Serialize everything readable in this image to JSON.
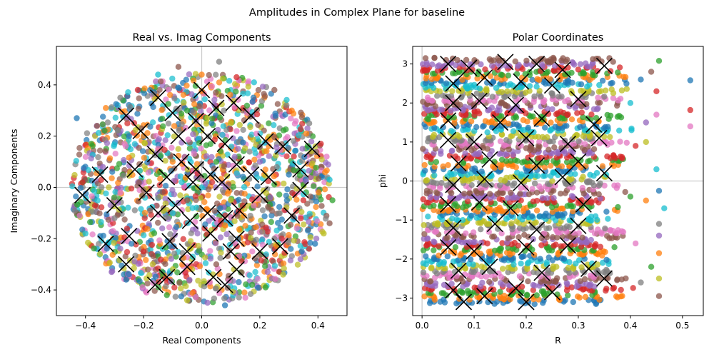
{
  "figure": {
    "title": "Amplitudes in Complex Plane for baseline"
  },
  "palette": [
    "#1f77b4",
    "#ff7f0e",
    "#2ca02c",
    "#d62728",
    "#9467bd",
    "#8c564b",
    "#e377c2",
    "#7f7f7f",
    "#bcbd22",
    "#17becf"
  ],
  "marker_color": "#000000",
  "chart_data": [
    {
      "type": "scatter",
      "title": "Real vs. Imag Components",
      "xlabel": "Real Components",
      "ylabel": "Imaginary Components",
      "xlim": [
        -0.5,
        0.5
      ],
      "ylim": [
        -0.5,
        0.55
      ],
      "xticks": [
        -0.4,
        -0.2,
        0.0,
        0.2,
        0.4
      ],
      "yticks": [
        -0.4,
        -0.2,
        0.0,
        0.2,
        0.4
      ],
      "xtick_labels": [
        "−0.4",
        "−0.2",
        "0.0",
        "0.2",
        "0.4"
      ],
      "ytick_labels": [
        "−0.4",
        "−0.2",
        "0.0",
        "0.2",
        "0.4"
      ],
      "reference_lines": {
        "x": 0,
        "y": 0
      },
      "grid": false,
      "legend": "none",
      "points": [
        [
          -0.43,
          0.27
        ],
        [
          -0.41,
          0.02
        ],
        [
          -0.42,
          -0.11
        ],
        [
          -0.4,
          -0.18
        ],
        [
          -0.38,
          0.17
        ],
        [
          -0.36,
          0.24
        ],
        [
          -0.35,
          -0.26
        ],
        [
          -0.33,
          0.31
        ],
        [
          -0.31,
          -0.33
        ],
        [
          -0.28,
          0.35
        ],
        [
          -0.26,
          -0.36
        ],
        [
          -0.22,
          0.38
        ],
        [
          -0.19,
          -0.41
        ],
        [
          -0.15,
          0.44
        ],
        [
          -0.12,
          -0.42
        ],
        [
          -0.08,
          0.47
        ],
        [
          -0.05,
          -0.44
        ],
        [
          0.0,
          0.44
        ],
        [
          0.02,
          -0.45
        ],
        [
          0.06,
          0.49
        ],
        [
          0.08,
          -0.46
        ],
        [
          0.12,
          0.43
        ],
        [
          0.15,
          -0.43
        ],
        [
          0.18,
          0.41
        ],
        [
          0.22,
          -0.39
        ],
        [
          0.25,
          0.38
        ],
        [
          0.28,
          -0.34
        ],
        [
          0.31,
          0.3
        ],
        [
          0.34,
          -0.28
        ],
        [
          0.37,
          0.25
        ],
        [
          0.39,
          -0.22
        ],
        [
          0.41,
          0.17
        ],
        [
          0.43,
          0.12
        ],
        [
          0.44,
          0.03
        ],
        [
          0.45,
          -0.05
        ],
        [
          0.44,
          -0.14
        ],
        [
          0.42,
          -0.18
        ],
        [
          0.36,
          0.21
        ],
        [
          -0.34,
          0.08
        ],
        [
          -0.3,
          -0.12
        ],
        [
          -0.25,
          0.2
        ],
        [
          -0.2,
          -0.25
        ],
        [
          -0.15,
          0.15
        ],
        [
          -0.1,
          -0.1
        ],
        [
          -0.05,
          0.3
        ],
        [
          0.05,
          -0.3
        ],
        [
          0.1,
          0.25
        ],
        [
          0.15,
          -0.15
        ],
        [
          0.2,
          0.1
        ],
        [
          0.25,
          -0.2
        ],
        [
          0.3,
          0.05
        ],
        [
          0.35,
          -0.05
        ],
        [
          -0.28,
          -0.02
        ],
        [
          0.0,
          0.0
        ],
        [
          0.05,
          0.1
        ],
        [
          -0.05,
          -0.05
        ],
        [
          0.1,
          -0.05
        ],
        [
          -0.1,
          0.1
        ]
      ],
      "x_markers": [
        [
          -0.41,
          -0.03
        ],
        [
          -0.33,
          -0.22
        ],
        [
          -0.26,
          0.28
        ],
        [
          -0.21,
          0.22
        ],
        [
          -0.15,
          0.35
        ],
        [
          -0.1,
          0.29
        ],
        [
          -0.02,
          0.26
        ],
        [
          0.05,
          0.31
        ],
        [
          0.11,
          0.33
        ],
        [
          0.17,
          0.28
        ],
        [
          0.22,
          0.18
        ],
        [
          0.28,
          0.16
        ],
        [
          0.34,
          0.07
        ],
        [
          0.38,
          0.15
        ],
        [
          0.34,
          -0.01
        ],
        [
          0.31,
          -0.11
        ],
        [
          0.27,
          -0.23
        ],
        [
          0.2,
          -0.25
        ],
        [
          0.12,
          -0.32
        ],
        [
          0.08,
          -0.38
        ],
        [
          0.04,
          -0.35
        ],
        [
          -0.05,
          -0.31
        ],
        [
          -0.12,
          -0.35
        ],
        [
          -0.16,
          -0.38
        ],
        [
          -0.26,
          -0.3
        ],
        [
          -0.25,
          -0.19
        ],
        [
          -0.3,
          -0.07
        ],
        [
          -0.35,
          0.05
        ],
        [
          -0.23,
          0.07
        ],
        [
          -0.16,
          0.13
        ],
        [
          -0.12,
          0.04
        ],
        [
          -0.07,
          0.1
        ],
        [
          -0.02,
          0.07
        ],
        [
          0.03,
          0.05
        ],
        [
          0.07,
          0.02
        ],
        [
          0.12,
          0.09
        ],
        [
          0.17,
          0.05
        ],
        [
          0.2,
          -0.03
        ],
        [
          0.13,
          -0.09
        ],
        [
          0.08,
          -0.12
        ],
        [
          0.02,
          -0.1
        ],
        [
          -0.04,
          -0.13
        ],
        [
          -0.09,
          -0.07
        ],
        [
          -0.15,
          -0.1
        ],
        [
          -0.19,
          -0.02
        ],
        [
          0.02,
          0.2
        ],
        [
          -0.08,
          0.2
        ],
        [
          0.08,
          0.17
        ],
        [
          0.12,
          -0.2
        ],
        [
          -0.05,
          -0.25
        ],
        [
          0.0,
          0.38
        ],
        [
          0.03,
          -0.18
        ],
        [
          -0.11,
          -0.21
        ],
        [
          0.23,
          0.04
        ],
        [
          0.1,
          -0.25
        ],
        [
          -0.03,
          0.02
        ]
      ]
    },
    {
      "type": "scatter",
      "title": "Polar Coordinates",
      "xlabel": "R",
      "ylabel": "phi",
      "xlim": [
        -0.018,
        0.54
      ],
      "ylim": [
        -3.45,
        3.45
      ],
      "xticks": [
        0.0,
        0.1,
        0.2,
        0.3,
        0.4,
        0.5
      ],
      "yticks": [
        -3,
        -2,
        -1,
        0,
        1,
        2,
        3
      ],
      "xtick_labels": [
        "0.0",
        "0.1",
        "0.2",
        "0.3",
        "0.4",
        "0.5"
      ],
      "ytick_labels": [
        "−3",
        "−2",
        "−1",
        "0",
        "1",
        "2",
        "3"
      ],
      "reference_lines": {
        "x": 0,
        "y": 0
      },
      "grid": false,
      "legend": "none",
      "points": [
        [
          0.515,
          2.58
        ],
        [
          0.515,
          1.82
        ],
        [
          0.515,
          1.4
        ],
        [
          0.465,
          -0.7
        ],
        [
          0.455,
          3.08
        ],
        [
          0.455,
          -2.95
        ],
        [
          0.455,
          -2.5
        ],
        [
          0.455,
          -1.85
        ],
        [
          0.455,
          -1.4
        ],
        [
          0.455,
          -1.1
        ],
        [
          0.455,
          -0.25
        ],
        [
          0.45,
          2.3
        ],
        [
          0.45,
          1.7
        ],
        [
          0.45,
          0.3
        ],
        [
          0.44,
          -2.2
        ],
        [
          0.44,
          2.8
        ],
        [
          0.43,
          1.0
        ],
        [
          0.43,
          -0.5
        ],
        [
          0.43,
          1.5
        ],
        [
          0.42,
          -2.6
        ],
        [
          0.42,
          2.6
        ],
        [
          0.41,
          0.9
        ],
        [
          0.41,
          -1.6
        ],
        [
          0.4,
          2.0
        ],
        [
          0.4,
          -0.4
        ]
      ],
      "x_markers": [
        [
          0.05,
          3.0
        ],
        [
          0.09,
          2.9
        ],
        [
          0.16,
          3.05
        ],
        [
          0.22,
          3.0
        ],
        [
          0.27,
          2.85
        ],
        [
          0.35,
          2.95
        ],
        [
          0.06,
          2.5
        ],
        [
          0.12,
          2.65
        ],
        [
          0.19,
          2.55
        ],
        [
          0.25,
          2.45
        ],
        [
          0.06,
          2.0
        ],
        [
          0.11,
          2.05
        ],
        [
          0.18,
          1.95
        ],
        [
          0.3,
          2.1
        ],
        [
          0.05,
          1.55
        ],
        [
          0.15,
          1.5
        ],
        [
          0.23,
          1.6
        ],
        [
          0.33,
          1.45
        ],
        [
          0.05,
          1.05
        ],
        [
          0.1,
          1.0
        ],
        [
          0.2,
          1.1
        ],
        [
          0.28,
          0.95
        ],
        [
          0.34,
          1.1
        ],
        [
          0.07,
          0.45
        ],
        [
          0.13,
          0.55
        ],
        [
          0.22,
          0.4
        ],
        [
          0.3,
          0.5
        ],
        [
          0.35,
          0.2
        ],
        [
          0.06,
          -0.1
        ],
        [
          0.12,
          0.05
        ],
        [
          0.19,
          -0.05
        ],
        [
          0.27,
          0.1
        ],
        [
          0.05,
          -0.6
        ],
        [
          0.11,
          -0.55
        ],
        [
          0.17,
          -0.7
        ],
        [
          0.31,
          -0.6
        ],
        [
          0.06,
          -1.2
        ],
        [
          0.14,
          -1.1
        ],
        [
          0.22,
          -1.25
        ],
        [
          0.3,
          -1.15
        ],
        [
          0.05,
          -1.7
        ],
        [
          0.1,
          -1.8
        ],
        [
          0.2,
          -1.7
        ],
        [
          0.28,
          -1.65
        ],
        [
          0.07,
          -2.3
        ],
        [
          0.13,
          -2.2
        ],
        [
          0.23,
          -2.35
        ],
        [
          0.32,
          -2.25
        ],
        [
          0.06,
          -2.8
        ],
        [
          0.12,
          -2.95
        ],
        [
          0.18,
          -2.75
        ],
        [
          0.25,
          -2.85
        ],
        [
          0.35,
          -2.5
        ],
        [
          0.08,
          -3.1
        ],
        [
          0.2,
          -3.1
        ]
      ]
    }
  ]
}
